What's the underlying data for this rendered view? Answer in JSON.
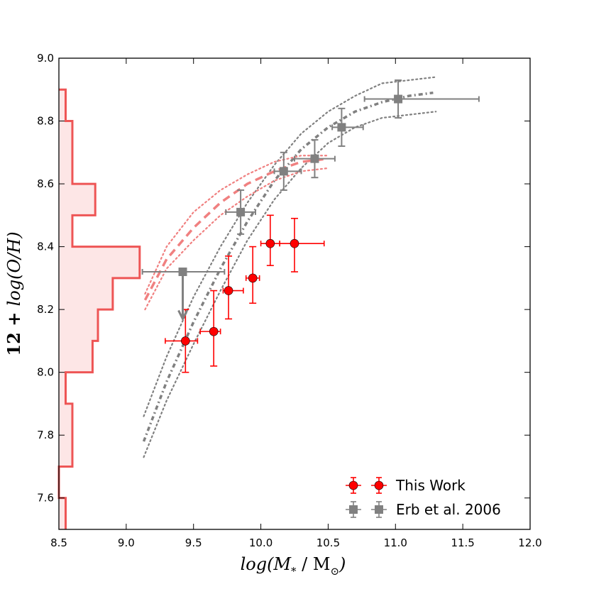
{
  "chart_data": {
    "type": "scatter",
    "xlabel": "log(M* / M⊙)",
    "ylabel": "12 + log(O/H)",
    "xlim": [
      8.5,
      12.0
    ],
    "ylim": [
      7.5,
      9.0
    ],
    "xticks": [
      "8.5",
      "9.0",
      "9.5",
      "10.0",
      "10.5",
      "11.0",
      "11.5",
      "12.0"
    ],
    "yticks": [
      "7.6",
      "7.8",
      "8.0",
      "8.2",
      "8.4",
      "8.6",
      "8.8",
      "9.0"
    ],
    "ylabel_parts": {
      "prefix": "12 + ",
      "func": "log(O/H)"
    },
    "xlabel_parts": {
      "main": "log(M",
      "sub_star": "*",
      "slash": " / M",
      "sub_sun": "⊙",
      "close": ")"
    },
    "series": [
      {
        "name": "This Work",
        "marker": "circle",
        "color": "#ff0000",
        "points": [
          {
            "x": 9.44,
            "y": 8.1,
            "xerr": [
              0.15,
              0.09
            ],
            "yerr": [
              0.1,
              0.1
            ]
          },
          {
            "x": 9.65,
            "y": 8.13,
            "xerr": [
              0.1,
              0.05
            ],
            "yerr": [
              0.11,
              0.13
            ]
          },
          {
            "x": 9.76,
            "y": 8.26,
            "xerr": [
              0.04,
              0.11
            ],
            "yerr": [
              0.09,
              0.11
            ]
          },
          {
            "x": 9.94,
            "y": 8.3,
            "xerr": [
              0.05,
              0.05
            ],
            "yerr": [
              0.08,
              0.1
            ]
          },
          {
            "x": 10.07,
            "y": 8.41,
            "xerr": [
              0.07,
              0.07
            ],
            "yerr": [
              0.07,
              0.09
            ]
          },
          {
            "x": 10.25,
            "y": 8.41,
            "xerr": [
              0.11,
              0.22
            ],
            "yerr": [
              0.09,
              0.08
            ]
          }
        ]
      },
      {
        "name": "Erb et al. 2006",
        "marker": "square",
        "color": "#808080",
        "points": [
          {
            "x": 9.42,
            "y": 8.32,
            "xerr": [
              0.3,
              0.31
            ],
            "yerr": [
              0.15,
              0.0
            ],
            "upper_limit": true
          },
          {
            "x": 9.85,
            "y": 8.51,
            "xerr": [
              0.11,
              0.11
            ],
            "yerr": [
              0.07,
              0.07
            ]
          },
          {
            "x": 10.17,
            "y": 8.64,
            "xerr": [
              0.07,
              0.13
            ],
            "yerr": [
              0.06,
              0.06
            ]
          },
          {
            "x": 10.4,
            "y": 8.68,
            "xerr": [
              0.15,
              0.15
            ],
            "yerr": [
              0.06,
              0.06
            ]
          },
          {
            "x": 10.6,
            "y": 8.78,
            "xerr": [
              0.07,
              0.16
            ],
            "yerr": [
              0.06,
              0.06
            ]
          },
          {
            "x": 11.02,
            "y": 8.87,
            "xerr": [
              0.25,
              0.6
            ],
            "yerr": [
              0.06,
              0.06
            ]
          }
        ]
      }
    ],
    "fit_curves": [
      {
        "name": "gray-central",
        "style": "dashdot",
        "color": "#808080",
        "x": [
          9.13,
          9.3,
          9.5,
          9.7,
          9.9,
          10.1,
          10.3,
          10.5,
          10.7,
          10.9,
          11.1,
          11.28
        ],
        "y": [
          7.78,
          7.97,
          8.16,
          8.33,
          8.48,
          8.61,
          8.71,
          8.78,
          8.83,
          8.86,
          8.88,
          8.89
        ]
      },
      {
        "name": "gray-upper",
        "style": "dotted",
        "color": "#808080",
        "x": [
          9.13,
          9.3,
          9.5,
          9.7,
          9.9,
          10.1,
          10.3,
          10.5,
          10.7,
          10.9,
          11.1,
          11.3
        ],
        "y": [
          7.86,
          8.05,
          8.24,
          8.4,
          8.54,
          8.66,
          8.76,
          8.83,
          8.88,
          8.92,
          8.93,
          8.94
        ]
      },
      {
        "name": "gray-lower",
        "style": "dotted",
        "color": "#808080",
        "x": [
          9.13,
          9.3,
          9.5,
          9.7,
          9.9,
          10.1,
          10.3,
          10.5,
          10.7,
          10.9,
          11.1,
          11.3
        ],
        "y": [
          7.73,
          7.91,
          8.09,
          8.26,
          8.42,
          8.55,
          8.65,
          8.73,
          8.78,
          8.81,
          8.82,
          8.83
        ]
      },
      {
        "name": "pink-central",
        "style": "dashed",
        "color": "#f08080",
        "x": [
          9.14,
          9.3,
          9.5,
          9.7,
          9.9,
          10.1,
          10.3,
          10.5
        ],
        "y": [
          8.23,
          8.36,
          8.46,
          8.54,
          8.6,
          8.64,
          8.67,
          8.68
        ]
      },
      {
        "name": "pink-upper",
        "style": "dotted",
        "color": "#f08080",
        "x": [
          9.14,
          9.3,
          9.5,
          9.7,
          9.9,
          10.1,
          10.3,
          10.5
        ],
        "y": [
          8.25,
          8.4,
          8.51,
          8.58,
          8.63,
          8.67,
          8.69,
          8.69
        ]
      },
      {
        "name": "pink-lower",
        "style": "dotted",
        "color": "#f08080",
        "x": [
          9.14,
          9.3,
          9.5,
          9.7,
          9.9,
          10.1,
          10.3,
          10.5
        ],
        "y": [
          8.2,
          8.33,
          8.42,
          8.5,
          8.56,
          8.61,
          8.64,
          8.65
        ]
      }
    ],
    "histogram": {
      "orientation": "horizontal",
      "baseline_x": 8.5,
      "color": "#ee5555",
      "fill": "#fde6e6",
      "bins": [
        {
          "y0": 8.8,
          "y1": 8.9,
          "x": 8.55
        },
        {
          "y0": 8.7,
          "y1": 8.8,
          "x": 8.6
        },
        {
          "y0": 8.6,
          "y1": 8.7,
          "x": 8.6
        },
        {
          "y0": 8.5,
          "y1": 8.6,
          "x": 8.77
        },
        {
          "y0": 8.4,
          "y1": 8.5,
          "x": 8.6
        },
        {
          "y0": 8.3,
          "y1": 8.4,
          "x": 9.1
        },
        {
          "y0": 8.2,
          "y1": 8.3,
          "x": 8.9
        },
        {
          "y0": 8.1,
          "y1": 8.2,
          "x": 8.79
        },
        {
          "y0": 8.0,
          "y1": 8.1,
          "x": 8.75
        },
        {
          "y0": 7.9,
          "y1": 8.0,
          "x": 8.55
        },
        {
          "y0": 7.8,
          "y1": 7.9,
          "x": 8.6
        },
        {
          "y0": 7.7,
          "y1": 7.8,
          "x": 8.6
        },
        {
          "y0": 7.6,
          "y1": 7.7,
          "x": 8.5
        },
        {
          "y0": 7.5,
          "y1": 7.6,
          "x": 8.55
        }
      ]
    },
    "legend": {
      "placement": "lower-right",
      "entries": [
        {
          "label": "This Work",
          "marker": "circle",
          "color": "#ff0000"
        },
        {
          "label": "Erb et al. 2006",
          "marker": "square",
          "color": "#808080"
        }
      ]
    }
  }
}
